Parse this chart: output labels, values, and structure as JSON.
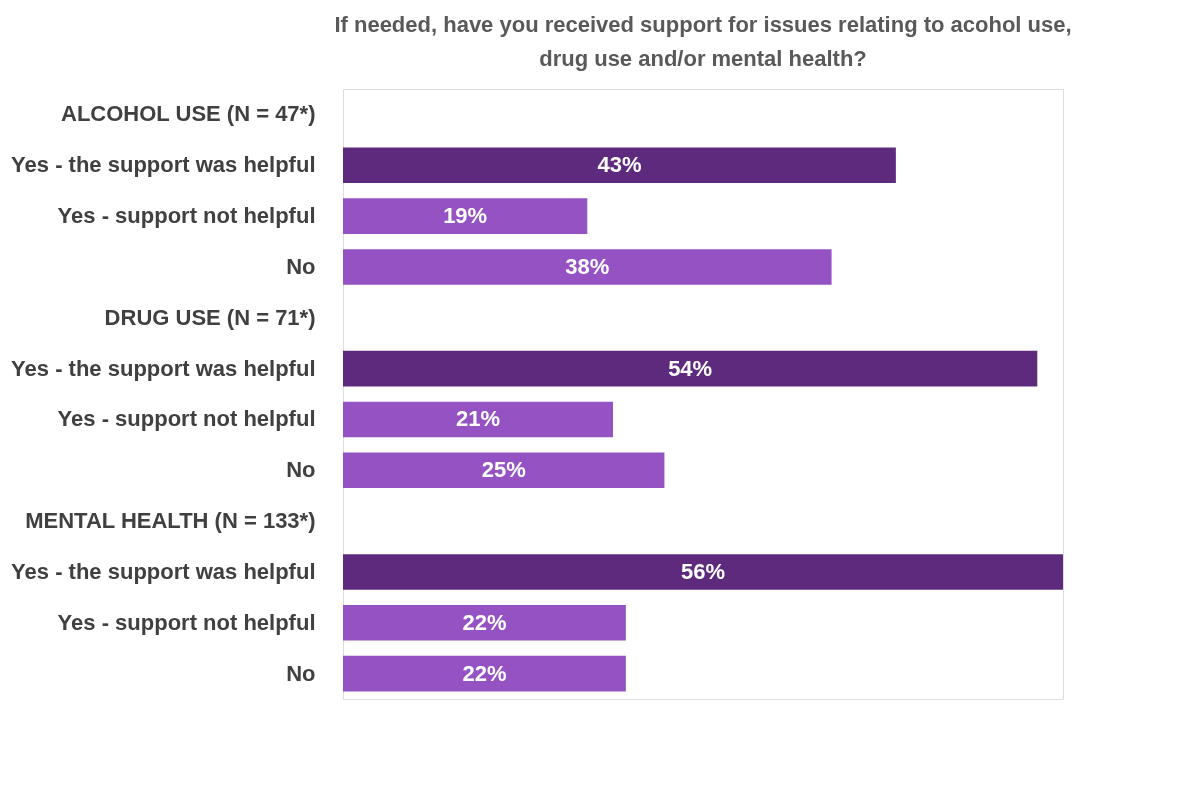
{
  "chart_data": {
    "type": "bar",
    "orientation": "horizontal",
    "title": "If needed, have you received support for issues relating to acohol use,\ndrug use and/or mental health?",
    "categories": [
      "ALCOHOL USE (N = 47*)",
      "Yes - the support was helpful",
      "Yes - support not helpful",
      "No",
      "DRUG USE (N = 71*)",
      "Yes - the support was helpful",
      "Yes - support not helpful",
      "No",
      "MENTAL HEALTH (N = 133*)",
      "Yes - the support was helpful",
      "Yes - support not helpful",
      "No"
    ],
    "values": [
      null,
      43,
      19,
      38,
      null,
      54,
      21,
      25,
      null,
      56,
      22,
      22
    ],
    "value_labels": [
      null,
      "43%",
      "19%",
      "38%",
      null,
      "54%",
      "21%",
      "25%",
      null,
      "56%",
      "22%",
      "22%"
    ],
    "colors": [
      null,
      "#5e2a7e",
      "#9552c2",
      "#9552c2",
      null,
      "#5e2a7e",
      "#9552c2",
      "#9552c2",
      null,
      "#5e2a7e",
      "#9552c2",
      "#9552c2"
    ],
    "xlim": [
      0,
      56
    ],
    "tick_labels": "y",
    "grid": false
  }
}
